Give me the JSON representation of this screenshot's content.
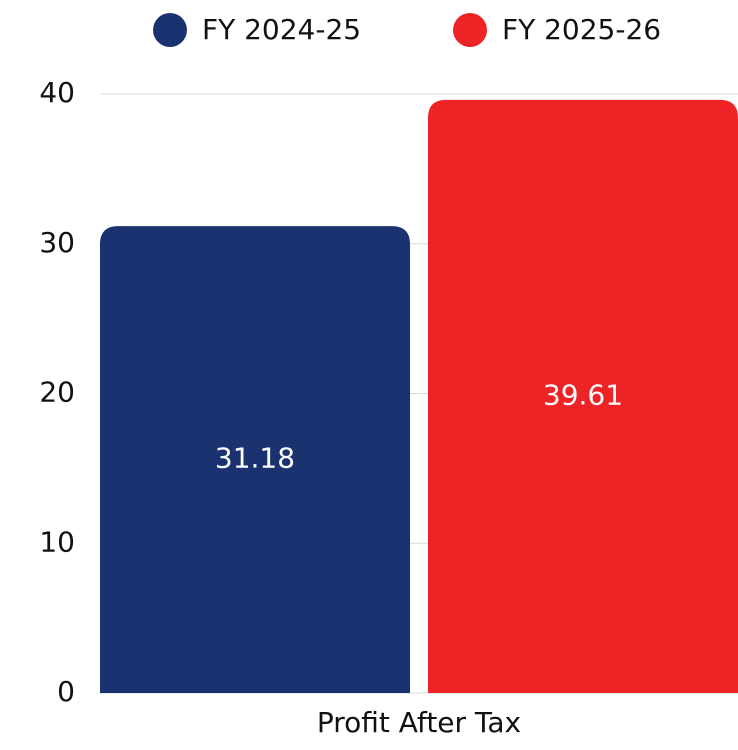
{
  "chart_data": {
    "type": "bar",
    "categories": [
      "Profit After Tax"
    ],
    "series": [
      {
        "name": "FY 2024-25",
        "color": "#1a3370",
        "values": [
          31.18
        ]
      },
      {
        "name": "FY 2025-26",
        "color": "#ee2326",
        "values": [
          39.61
        ]
      }
    ],
    "ylim": [
      0,
      40
    ],
    "yticks": [
      0,
      10,
      20,
      30,
      40
    ],
    "grid": true
  }
}
